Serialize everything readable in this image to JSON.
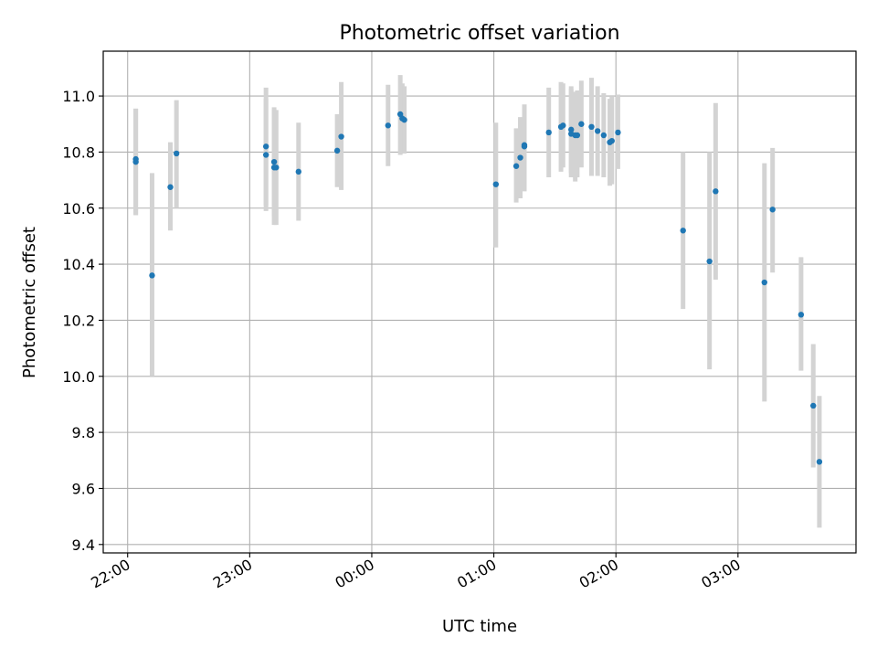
{
  "chart_data": {
    "type": "scatter",
    "title": "Photometric offset variation",
    "xlabel": "UTC time",
    "ylabel": "Photometric offset",
    "x_unit": "UTC time of day (HH:MM)",
    "xlim": [
      "21:48",
      "03:58"
    ],
    "ylim": [
      9.37,
      11.16
    ],
    "x_ticks": [
      "22:00",
      "23:00",
      "00:00",
      "01:00",
      "02:00",
      "03:00"
    ],
    "y_ticks": [
      "9.4",
      "9.6",
      "9.8",
      "10.0",
      "10.2",
      "10.4",
      "10.6",
      "10.8",
      "11.0"
    ],
    "grid": true,
    "legend": "none",
    "colors": {
      "points": "#1f77b4",
      "errorbars": "#d3d3d3"
    },
    "series": [
      {
        "x": [
          "22:04",
          "22:04",
          "22:12",
          "22:21",
          "22:24",
          "23:08",
          "23:08",
          "23:12",
          "23:12",
          "23:13",
          "23:24",
          "23:43",
          "23:45",
          "00:08",
          "00:14",
          "00:15",
          "00:16",
          "01:01",
          "01:11",
          "01:13",
          "01:15",
          "01:15",
          "01:27",
          "01:33",
          "01:34",
          "01:38",
          "01:38",
          "01:40",
          "01:41",
          "01:43",
          "01:48",
          "01:51",
          "01:54",
          "01:57",
          "01:58",
          "02:01",
          "02:33",
          "02:46",
          "02:49",
          "03:13",
          "03:17",
          "03:31",
          "03:37",
          "03:40"
        ],
        "y": [
          10.765,
          10.775,
          10.36,
          10.675,
          10.795,
          10.82,
          10.79,
          10.765,
          10.745,
          10.745,
          10.73,
          10.805,
          10.855,
          10.895,
          10.935,
          10.92,
          10.915,
          10.685,
          10.75,
          10.78,
          10.825,
          10.82,
          10.87,
          10.89,
          10.895,
          10.865,
          10.88,
          10.86,
          10.86,
          10.9,
          10.89,
          10.875,
          10.86,
          10.835,
          10.84,
          10.87,
          10.52,
          10.41,
          10.66,
          10.335,
          10.595,
          10.22,
          9.895,
          9.695
        ],
        "yerr_low": [
          10.575,
          10.575,
          10.0,
          10.52,
          10.6,
          10.61,
          10.59,
          10.57,
          10.54,
          10.54,
          10.555,
          10.675,
          10.665,
          10.75,
          10.79,
          10.795,
          10.795,
          10.46,
          10.62,
          10.635,
          10.66,
          10.675,
          10.71,
          10.73,
          10.745,
          10.71,
          10.725,
          10.695,
          10.71,
          10.745,
          10.715,
          10.715,
          10.71,
          10.68,
          10.685,
          10.74,
          10.24,
          10.025,
          10.345,
          9.91,
          10.37,
          10.02,
          9.675,
          9.46
        ],
        "yerr_high": [
          10.955,
          10.955,
          10.725,
          10.835,
          10.985,
          11.03,
          10.99,
          10.96,
          10.95,
          10.95,
          10.905,
          10.935,
          11.05,
          11.04,
          11.075,
          11.045,
          11.035,
          10.905,
          10.885,
          10.925,
          10.96,
          10.97,
          11.03,
          11.05,
          11.045,
          11.025,
          11.035,
          11.015,
          11.02,
          11.055,
          11.065,
          11.035,
          11.01,
          10.99,
          11.0,
          11.005,
          10.8,
          10.8,
          10.975,
          10.76,
          10.815,
          10.425,
          10.115,
          9.93
        ]
      }
    ]
  }
}
